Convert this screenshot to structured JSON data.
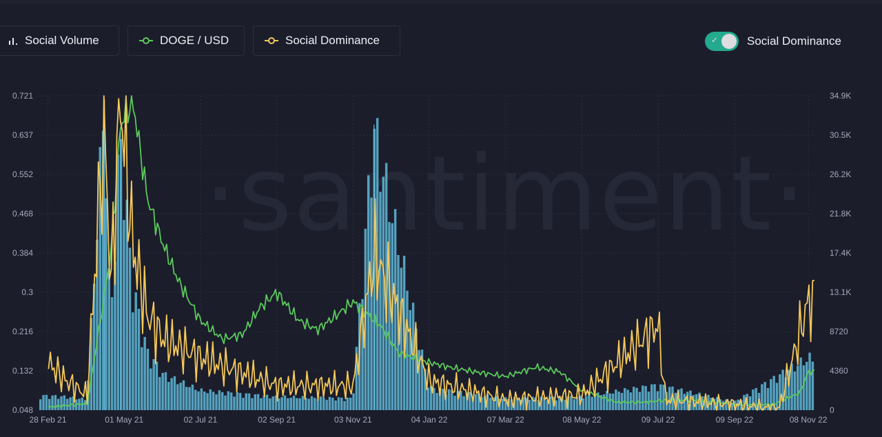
{
  "metrics": [
    {
      "label": "Social Volume",
      "icon": "bar-chart-icon",
      "color": "#e6e8f0"
    },
    {
      "label": "DOGE / USD",
      "icon": "ring-green-icon",
      "color": "#5bc95b"
    },
    {
      "label": "Social Dominance",
      "icon": "ring-yellow-icon",
      "color": "#f5c85a"
    }
  ],
  "toggle": {
    "label": "Social Dominance",
    "on": true
  },
  "watermark": "·santiment·",
  "chart_data": {
    "type": "line",
    "x_ticks": [
      "28 Feb 21",
      "01 May 21",
      "02 Jul 21",
      "02 Sep 21",
      "03 Nov 21",
      "04 Jan 22",
      "07 Mar 22",
      "08 May 22",
      "09 Jul 22",
      "09 Sep 22",
      "08 Nov 22"
    ],
    "y_left_ticks": [
      "0.721",
      "0.637",
      "0.552",
      "0.468",
      "0.384",
      "0.3",
      "0.216",
      "0.132",
      "0.048"
    ],
    "y_right_ticks": [
      "34.9K",
      "30.5K",
      "26.2K",
      "21.8K",
      "17.4K",
      "13.1K",
      "8720",
      "4360",
      "0"
    ],
    "y_left_range": [
      0.048,
      0.721
    ],
    "y_right_range": [
      0,
      34900
    ],
    "series": [
      {
        "name": "DOGE / USD",
        "color": "#5bc95b",
        "axis": "left",
        "x": [
          "28 Feb 21",
          "15 Mar 21",
          "01 Apr 21",
          "20 Apr 21",
          "28 Apr 21",
          "08 May 21",
          "20 May 21",
          "02 Jun 21",
          "15 Jun 21",
          "02 Jul 21",
          "20 Jul 21",
          "05 Aug 21",
          "20 Aug 21",
          "02 Sep 21",
          "20 Sep 21",
          "05 Oct 21",
          "20 Oct 21",
          "03 Nov 21",
          "25 Nov 21",
          "10 Dec 21",
          "04 Jan 22",
          "20 Jan 22",
          "10 Feb 22",
          "07 Mar 22",
          "01 Apr 22",
          "20 Apr 22",
          "08 May 22",
          "05 Jun 22",
          "01 Jul 22",
          "09 Jul 22",
          "09 Aug 22",
          "09 Sep 22",
          "10 Oct 22",
          "01 Nov 22",
          "08 Nov 22"
        ],
        "values": [
          0.054,
          0.058,
          0.062,
          0.38,
          0.66,
          0.71,
          0.5,
          0.4,
          0.32,
          0.24,
          0.2,
          0.21,
          0.27,
          0.3,
          0.24,
          0.22,
          0.25,
          0.28,
          0.23,
          0.17,
          0.15,
          0.14,
          0.13,
          0.12,
          0.14,
          0.13,
          0.09,
          0.065,
          0.065,
          0.068,
          0.07,
          0.06,
          0.06,
          0.085,
          0.13
        ]
      },
      {
        "name": "Social Dominance",
        "color": "#f5c85a",
        "axis": "left",
        "x": [
          "28 Feb 21",
          "15 Mar 21",
          "01 Apr 21",
          "15 Apr 21",
          "20 Apr 21",
          "28 Apr 21",
          "08 May 21",
          "20 May 21",
          "02 Jun 21",
          "02 Jul 21",
          "02 Sep 21",
          "03 Nov 21",
          "20 Nov 21",
          "04 Jan 22",
          "07 Mar 22",
          "08 May 22",
          "09 Jul 22",
          "15 Jul 22",
          "09 Sep 22",
          "15 Oct 22",
          "08 Nov 22"
        ],
        "values": [
          0.15,
          0.11,
          0.08,
          0.68,
          0.3,
          0.72,
          0.4,
          0.25,
          0.2,
          0.16,
          0.1,
          0.1,
          0.38,
          0.11,
          0.07,
          0.08,
          0.23,
          0.07,
          0.06,
          0.05,
          0.28
        ]
      },
      {
        "name": "Social Volume",
        "color": "#5fb8d8",
        "axis": "right",
        "x": [
          "28 Feb 21",
          "15 Mar 21",
          "01 Apr 21",
          "15 Apr 21",
          "20 Apr 21",
          "28 Apr 21",
          "08 May 21",
          "20 May 21",
          "02 Jun 21",
          "02 Jul 21",
          "02 Sep 21",
          "03 Nov 21",
          "20 Nov 21",
          "04 Jan 22",
          "07 Mar 22",
          "08 May 22",
          "09 Jul 22",
          "09 Sep 22",
          "08 Nov 22"
        ],
        "values": [
          1600,
          1500,
          1200,
          34500,
          9000,
          31000,
          14000,
          6500,
          4000,
          2200,
          1500,
          1300,
          31700,
          2500,
          1300,
          1500,
          2800,
          900,
          5800
        ]
      }
    ],
    "grid": true,
    "legend": "top-left"
  }
}
